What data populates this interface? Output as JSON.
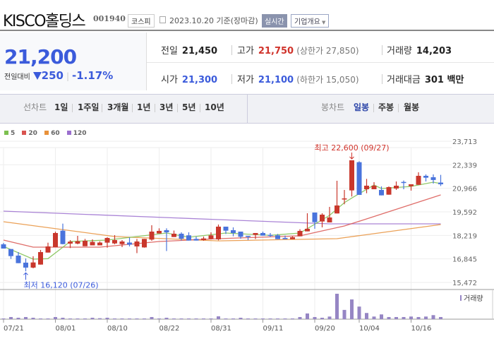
{
  "header": {
    "company": "KISCO홀딩스",
    "code": "001940",
    "market": "코스피",
    "date_text": "2023.10.20 기준(장마감)",
    "realtime_label": "실시간",
    "company_info_label": "기업개요"
  },
  "quote": {
    "price": "21,200",
    "change_label": "전일대비",
    "change": "250",
    "change_pct": "-1.17%",
    "direction": "down",
    "prev_label": "전일",
    "prev": "21,450",
    "high_label": "고가",
    "high": "21,750",
    "upper_limit": "(상한가 27,850)",
    "volume_label": "거래량",
    "volume": "14,203",
    "open_label": "시가",
    "open": "21,300",
    "low_label": "저가",
    "low": "21,100",
    "lower_limit": "(하한가 15,050)",
    "amount_label": "거래대금",
    "amount": "301 백만"
  },
  "tabs": {
    "line_label": "선차트",
    "line_periods": [
      "1일",
      "1주일",
      "3개월",
      "1년",
      "3년",
      "5년",
      "10년"
    ],
    "candle_label": "봉차트",
    "candle_periods": [
      "일봉",
      "주봉",
      "월봉"
    ],
    "candle_active": "일봉"
  },
  "colors": {
    "up": "#c9372c",
    "down": "#4a74dc",
    "ma5": "#7cc04f",
    "ma20": "#d9534f",
    "ma60": "#e8913a",
    "ma120": "#9b6fcf",
    "volume": "#9686c4"
  },
  "chart_data": {
    "type": "candlestick",
    "legend": [
      {
        "name": "5",
        "color": "#7cc04f"
      },
      {
        "name": "20",
        "color": "#d9534f"
      },
      {
        "name": "60",
        "color": "#e8913a"
      },
      {
        "name": "120",
        "color": "#9b6fcf"
      }
    ],
    "y_ticks": [
      "23,713",
      "22,339",
      "20,966",
      "19,592",
      "18,219",
      "16,845",
      "15,472"
    ],
    "ylim": [
      15472,
      23713
    ],
    "x_tick_labels": [
      "07/21",
      "08/01",
      "08/10",
      "08/22",
      "08/31",
      "09/11",
      "09/20",
      "10/04",
      "10/16"
    ],
    "volume_label": "거래량",
    "max_annotation": "최고 22,600 (09/27)",
    "max_date": "09/27",
    "min_annotation": "최저 16,120 (07/26)",
    "min_date": "07/26",
    "dates": [
      "07/21",
      "07/24",
      "07/25",
      "07/26",
      "07/27",
      "07/28",
      "07/31",
      "08/01",
      "08/02",
      "08/03",
      "08/04",
      "08/07",
      "08/08",
      "08/09",
      "08/10",
      "08/11",
      "08/14",
      "08/16",
      "08/17",
      "08/18",
      "08/21",
      "08/22",
      "08/23",
      "08/24",
      "08/25",
      "08/28",
      "08/29",
      "08/30",
      "08/31",
      "09/01",
      "09/04",
      "09/05",
      "09/06",
      "09/07",
      "09/08",
      "09/11",
      "09/12",
      "09/13",
      "09/14",
      "09/15",
      "09/18",
      "09/19",
      "09/20",
      "09/21",
      "09/22",
      "09/25",
      "09/26",
      "09/27",
      "10/04",
      "10/05",
      "10/06",
      "10/10",
      "10/11",
      "10/12",
      "10/13",
      "10/16",
      "10/17",
      "10/18",
      "10/19",
      "10/20"
    ],
    "ohlc": [
      [
        17698,
        17780,
        17450,
        17450
      ],
      [
        17422,
        17422,
        16845,
        17010
      ],
      [
        17039,
        17245,
        16598,
        16598
      ],
      [
        16627,
        16874,
        16120,
        16338
      ],
      [
        16338,
        17000,
        16297,
        16639
      ],
      [
        16515,
        17369,
        16515,
        17245
      ],
      [
        17216,
        17793,
        17216,
        17574
      ],
      [
        17533,
        18439,
        17533,
        18357
      ],
      [
        18493,
        18905,
        17698,
        17710
      ],
      [
        17739,
        17945,
        17479,
        17852
      ],
      [
        17739,
        18192,
        17698,
        17877
      ],
      [
        17586,
        18014,
        17586,
        17904
      ],
      [
        17636,
        17986,
        17636,
        17837
      ],
      [
        17636,
        17870,
        17636,
        17800
      ],
      [
        17795,
        18110,
        17500,
        18069
      ],
      [
        17750,
        18233,
        17698,
        17945
      ],
      [
        17710,
        17945,
        17533,
        17863
      ],
      [
        17800,
        18096,
        17574,
        17677
      ],
      [
        17574,
        18014,
        17183,
        17863
      ],
      [
        17516,
        18014,
        17500,
        18014
      ],
      [
        17972,
        18810,
        17904,
        18439
      ],
      [
        18329,
        18631,
        18329,
        18481
      ],
      [
        18522,
        18631,
        17306,
        18398
      ],
      [
        18123,
        18500,
        18123,
        18316
      ],
      [
        18316,
        18398,
        17917,
        18027
      ],
      [
        18220,
        18398,
        17917,
        17917
      ],
      [
        18014,
        18150,
        17917,
        17917
      ],
      [
        17945,
        18150,
        17904,
        18040
      ],
      [
        18014,
        18398,
        17986,
        18220
      ],
      [
        17986,
        18852,
        17930,
        18728
      ],
      [
        18728,
        18728,
        18302,
        18493
      ],
      [
        18522,
        18686,
        18165,
        18357
      ],
      [
        18439,
        18439,
        18027,
        18137
      ],
      [
        18192,
        18192,
        17945,
        18137
      ],
      [
        18247,
        18357,
        18007,
        18357
      ],
      [
        18357,
        18439,
        18206,
        18206
      ],
      [
        18247,
        18357,
        18124,
        18206
      ],
      [
        18220,
        18302,
        17999,
        17999
      ],
      [
        18069,
        18206,
        17999,
        17999
      ],
      [
        17999,
        18165,
        17999,
        18110
      ],
      [
        18165,
        18577,
        18165,
        18480
      ],
      [
        18453,
        19511,
        18453,
        18604
      ],
      [
        19552,
        19552,
        18604,
        18989
      ],
      [
        19030,
        19511,
        18686,
        19428
      ],
      [
        18975,
        19882,
        18975,
        19264
      ],
      [
        19498,
        21406,
        19498,
        19964
      ],
      [
        20350,
        20870,
        20034,
        20375
      ],
      [
        20843,
        22600,
        20487,
        22600
      ],
      [
        22490,
        22545,
        20582,
        20582
      ],
      [
        20911,
        21516,
        20677,
        21118
      ],
      [
        20911,
        21323,
        20911,
        21118
      ],
      [
        20870,
        21076,
        20554,
        20554
      ],
      [
        20594,
        21076,
        20594,
        21035
      ],
      [
        20953,
        21365,
        20870,
        21118
      ],
      [
        21337,
        21420,
        20911,
        21282
      ],
      [
        21090,
        21200,
        20830,
        21200
      ],
      [
        21170,
        21900,
        21170,
        21694
      ],
      [
        21694,
        21776,
        21365,
        21584
      ],
      [
        21612,
        21776,
        21241,
        21450
      ],
      [
        21300,
        21750,
        21100,
        21200
      ]
    ],
    "volume": [
      4700,
      14200,
      9500,
      14200,
      9500,
      4700,
      4700,
      14200,
      9500,
      4700,
      4700,
      4700,
      9500,
      6300,
      9500,
      4700,
      4700,
      4700,
      4700,
      4700,
      14200,
      4700,
      9500,
      4700,
      4700,
      4700,
      4700,
      4700,
      4700,
      18900,
      4700,
      4700,
      9500,
      4700,
      4700,
      4700,
      4700,
      4700,
      4700,
      4700,
      14200,
      37900,
      14200,
      9500,
      17400,
      168800,
      61500,
      131000,
      83600,
      41000,
      17400,
      31600,
      14200,
      14200,
      14200,
      17400,
      14200,
      17400,
      26800,
      14203
    ],
    "moving_averages": {
      "5": [
        [
          "07/21",
          17574
        ],
        [
          "07/27",
          16832
        ],
        [
          "07/31",
          16860
        ],
        [
          "08/03",
          17863
        ],
        [
          "08/10",
          17945
        ],
        [
          "08/23",
          18357
        ],
        [
          "08/28",
          18110
        ],
        [
          "09/04",
          18357
        ],
        [
          "09/12",
          18220
        ],
        [
          "09/18",
          18357
        ],
        [
          "09/22",
          19387
        ],
        [
          "09/26",
          20129
        ],
        [
          "09/27",
          20400
        ],
        [
          "10/06",
          21158
        ],
        [
          "10/10",
          20953
        ],
        [
          "10/16",
          21076
        ],
        [
          "10/19",
          21323
        ],
        [
          "10/20",
          21241
        ]
      ],
      "20": [
        [
          "07/21",
          17945
        ],
        [
          "07/27",
          17533
        ],
        [
          "08/09",
          17533
        ],
        [
          "08/22",
          17863
        ],
        [
          "09/01",
          18027
        ],
        [
          "09/18",
          18192
        ],
        [
          "09/26",
          18769
        ],
        [
          "10/05",
          19180
        ],
        [
          "10/20",
          20582
        ]
      ],
      "60": [
        [
          "07/21",
          19016
        ],
        [
          "08/11",
          18150
        ],
        [
          "09/01",
          17900
        ],
        [
          "09/25",
          18027
        ],
        [
          "10/20",
          18851
        ]
      ],
      "120": [
        [
          "07/21",
          19633
        ],
        [
          "09/01",
          19140
        ],
        [
          "09/22",
          18892
        ],
        [
          "10/20",
          18892
        ]
      ]
    }
  }
}
